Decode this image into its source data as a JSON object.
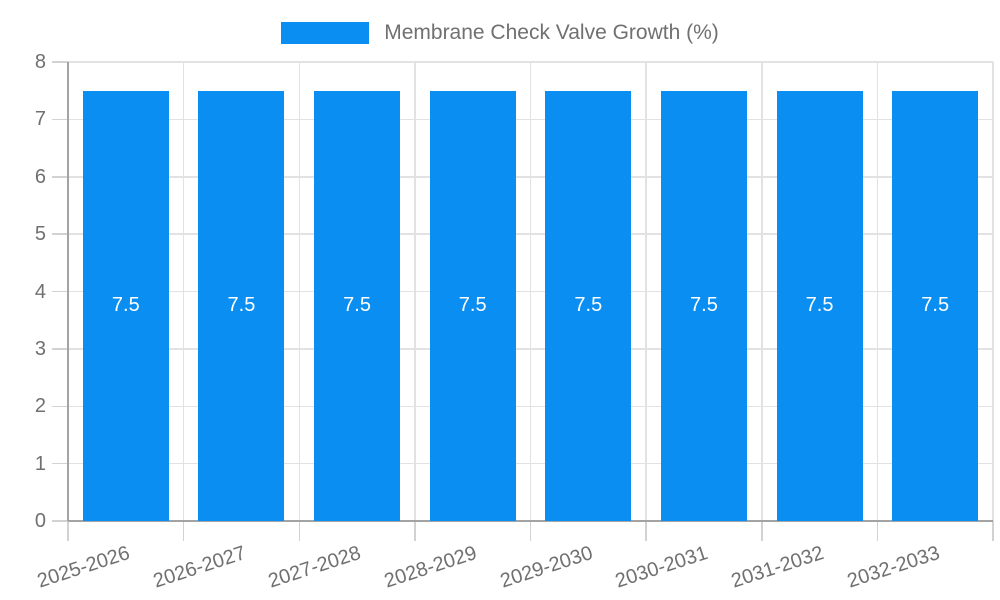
{
  "legend": {
    "label": "Membrane Check Valve Growth (%)"
  },
  "chart_data": {
    "type": "bar",
    "title": "Membrane Check Valve Growth (%)",
    "categories": [
      "2025-2026",
      "2026-2027",
      "2027-2028",
      "2028-2029",
      "2029-2030",
      "2030-2031",
      "2031-2032",
      "2032-2033"
    ],
    "values": [
      7.5,
      7.5,
      7.5,
      7.5,
      7.5,
      7.5,
      7.5,
      7.5
    ],
    "bar_value_labels": [
      "7.5",
      "7.5",
      "7.5",
      "7.5",
      "7.5",
      "7.5",
      "7.5",
      "7.5"
    ],
    "series_name": "Membrane Check Valve Growth (%)",
    "xlabel": "",
    "ylabel": "",
    "ylim": [
      0,
      8
    ],
    "yticks": [
      0,
      1,
      2,
      3,
      4,
      5,
      6,
      7,
      8
    ],
    "grid": true,
    "legend_position": "top-center",
    "x_tick_rotation_deg": -18,
    "colors": {
      "bar": "#0b8ef2",
      "grid": "#e2e2e2",
      "axis": "#a3a3a3",
      "tick": "#d2d2d2",
      "tick_label": "#707070",
      "legend_text": "#707070",
      "bar_value_label": "#ffffff",
      "background": "#ffffff"
    }
  }
}
